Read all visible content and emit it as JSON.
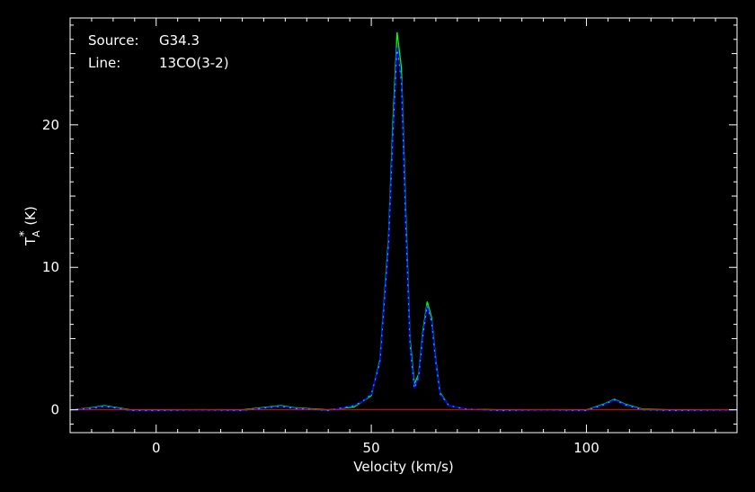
{
  "chart_data": {
    "type": "line",
    "title": "",
    "xlabel": "Velocity (km/s)",
    "ylabel_main": "T",
    "ylabel_sub": "A",
    "ylabel_sup": "*",
    "ylabel_unit": "(K)",
    "xlim": [
      -20,
      135
    ],
    "ylim": [
      -1.6,
      27.5
    ],
    "x_ticks": [
      0,
      50,
      100
    ],
    "x_tick_labels": [
      "0",
      "50",
      "100"
    ],
    "y_ticks": [
      0,
      10,
      20
    ],
    "y_tick_labels": [
      "0",
      "10",
      "20"
    ],
    "grid": false,
    "legend": "none",
    "annotations": {
      "source_label": "Source:",
      "source_value": "G34.3",
      "line_label": "Line:",
      "line_value": "13CO(3-2)"
    },
    "colors": {
      "background": "#000000",
      "axes": "#ffffff",
      "baseline": "#ff0000",
      "model": "#00ff00",
      "observed": "#0000ff",
      "residual_dashes": "#00c8ff"
    },
    "series": [
      {
        "color": "#00ff00",
        "x": [
          -20,
          -15,
          -12,
          -9,
          -6,
          0,
          10,
          20,
          26,
          29,
          32,
          40,
          46,
          50,
          52,
          54,
          55,
          56,
          57,
          58,
          59,
          60,
          61,
          62,
          63,
          64,
          65,
          66,
          68,
          72,
          80,
          90,
          100,
          104,
          106.5,
          109,
          113,
          120,
          135
        ],
        "y": [
          0,
          0.15,
          0.3,
          0.15,
          0,
          0,
          0,
          0,
          0.2,
          0.3,
          0.15,
          0,
          0.2,
          1,
          3.5,
          12,
          20,
          26.5,
          24,
          14,
          5,
          1.8,
          2.5,
          5.5,
          7.6,
          6.5,
          3.5,
          1.2,
          0.3,
          0.05,
          0,
          0,
          0,
          0.4,
          0.75,
          0.4,
          0.05,
          0,
          0
        ]
      },
      {
        "color": "#0000ff",
        "x": [
          -20,
          -15,
          -12,
          -9,
          -6,
          0,
          10,
          20,
          26,
          29,
          32,
          40,
          46,
          48,
          50,
          52,
          54,
          55,
          56,
          57,
          58,
          59,
          60,
          61,
          62,
          63,
          64,
          65,
          66,
          68,
          72,
          80,
          90,
          100,
          104,
          106.5,
          109,
          113,
          120,
          135
        ],
        "y": [
          0,
          0.1,
          0.25,
          0.1,
          -0.05,
          -0.05,
          0,
          -0.05,
          0.15,
          0.25,
          0.1,
          -0.05,
          0.3,
          0.6,
          1.1,
          3.3,
          11.5,
          19,
          25.5,
          23,
          13,
          4.5,
          1.5,
          2.3,
          5.2,
          7.3,
          6.2,
          3.3,
          1.1,
          0.3,
          0.05,
          -0.05,
          0,
          -0.05,
          0.35,
          0.7,
          0.35,
          0,
          -0.05,
          0
        ]
      }
    ]
  }
}
